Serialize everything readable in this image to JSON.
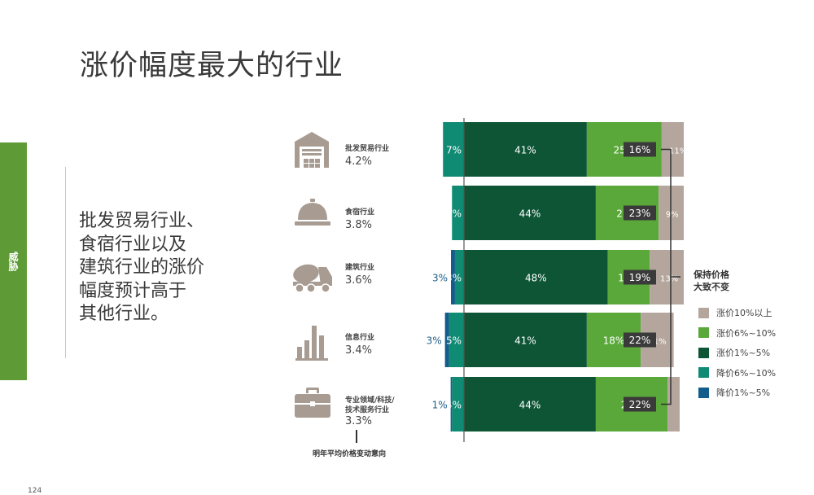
{
  "page": {
    "title": "涨价幅度最大的行业",
    "side_tab": "威胁",
    "summary_lines": [
      "批发贸易行业、",
      "食宿行业以及",
      "建筑行业的涨价",
      "幅度预计高于",
      "其他行业。"
    ],
    "footnote": "明年平均价格变动意向",
    "stable_label_lines": [
      "保持价格",
      "大致不变"
    ],
    "page_number": "124"
  },
  "industries": [
    {
      "name_lines": [
        "批发贸易行业"
      ],
      "value": "4.2%",
      "icon": "warehouse-icon"
    },
    {
      "name_lines": [
        "食宿行业"
      ],
      "value": "3.8%",
      "icon": "service-bell-icon"
    },
    {
      "name_lines": [
        "建筑行业"
      ],
      "value": "3.6%",
      "icon": "cement-truck-icon"
    },
    {
      "name_lines": [
        "信息行业"
      ],
      "value": "3.4%",
      "icon": "bar-chart-icon"
    },
    {
      "name_lines": [
        "专业领域/科技/",
        "技术服务行业"
      ],
      "value": "3.3%",
      "icon": "briefcase-icon"
    }
  ],
  "colors": {
    "raise_10_plus": "#b4a69c",
    "raise_6_10": "#5aa83a",
    "raise_1_5": "#0e5536",
    "cut_6_10": "#0f8a73",
    "cut_1_5": "#135d8c",
    "badge": "#3a3a3a",
    "icon": "#a89c92"
  },
  "chart_data": {
    "type": "bar",
    "categories": [
      "批发贸易行业",
      "食宿行业",
      "建筑行业",
      "信息行业",
      "专业领域/科技/技术服务行业"
    ],
    "series": [
      {
        "name": "降价1%~5%",
        "values": [
          null,
          null,
          3,
          3,
          1
        ],
        "labels": [
          "",
          "",
          "3%",
          "3%",
          "1%"
        ]
      },
      {
        "name": "降价6%~10%",
        "values": [
          7,
          4,
          3,
          5,
          4
        ],
        "labels": [
          "7%",
          "4%",
          "3%",
          "5%",
          "4%"
        ]
      },
      {
        "name": "涨价1%~5%",
        "values": [
          41,
          44,
          48,
          41,
          44
        ],
        "labels": [
          "41%",
          "44%",
          "48%",
          "41%",
          "44%"
        ]
      },
      {
        "name": "涨价6%~10%",
        "values": [
          25,
          21,
          14,
          18,
          24
        ],
        "labels": [
          "25%",
          "21%",
          "14%",
          "18%",
          "24%"
        ]
      },
      {
        "name": "涨价10%以上",
        "values": [
          11,
          9,
          13,
          11,
          4
        ],
        "labels": [
          "11%",
          "9%",
          "13%",
          "11%",
          "4%"
        ]
      }
    ],
    "unchanged": {
      "name": "保持价格大致不变",
      "values": [
        "16%",
        "23%",
        "19%",
        "22%",
        "22%"
      ]
    },
    "legend": [
      "涨价10%以上",
      "涨价6%~10%",
      "涨价1%~5%",
      "降价6%~10%",
      "降价1%~5%"
    ],
    "legend_position": "right",
    "stacked": true,
    "orientation": "horizontal"
  }
}
